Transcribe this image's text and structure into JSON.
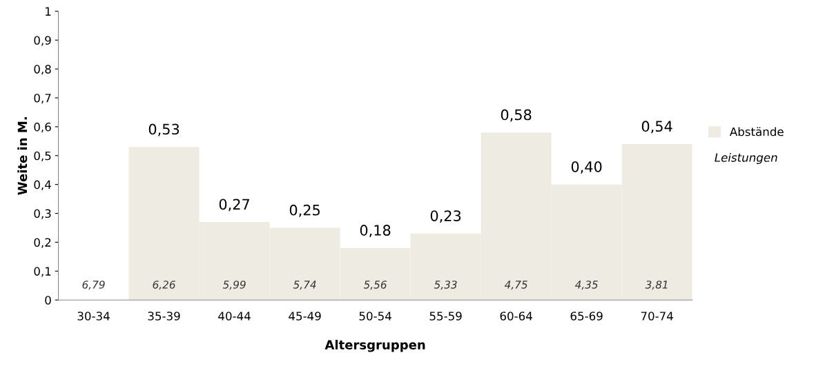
{
  "chart_data": {
    "type": "bar",
    "xlabel": "Altersgruppen",
    "ylabel": "Weite in M.",
    "categories": [
      "30-34",
      "35-39",
      "40-44",
      "45-49",
      "50-54",
      "55-59",
      "60-64",
      "65-69",
      "70-74"
    ],
    "series": [
      {
        "name": "Abstände",
        "color": "#eeebe2",
        "values": [
          null,
          0.53,
          0.27,
          0.25,
          0.18,
          0.23,
          0.58,
          0.4,
          0.54
        ],
        "value_labels": [
          null,
          "0,53",
          "0,27",
          "0,25",
          "0,18",
          "0,23",
          "0,58",
          "0,40",
          "0,54"
        ]
      }
    ],
    "ylim": [
      0,
      1
    ],
    "yticks": [
      0,
      {
        "value": 0.1,
        "label": "0,1"
      },
      {
        "value": 0.2,
        "label": "0,2"
      },
      {
        "value": 0.3,
        "label": "0,3"
      },
      {
        "value": 0.4,
        "label": "0,4"
      },
      {
        "value": 0.5,
        "label": "0,5"
      },
      {
        "value": 0.6,
        "label": "0,6"
      },
      {
        "value": 0.7,
        "label": "0,7"
      },
      {
        "value": 0.8,
        "label": "0,8"
      },
      {
        "value": 0.9,
        "label": "0,9"
      },
      1
    ],
    "grid": false,
    "legend": "right",
    "annotations": [
      "6,79",
      "6,26",
      "5,99",
      "5,74",
      "5,56",
      "5,33",
      "4,75",
      "4,35",
      "3,81",
      "Leistungen"
    ]
  }
}
